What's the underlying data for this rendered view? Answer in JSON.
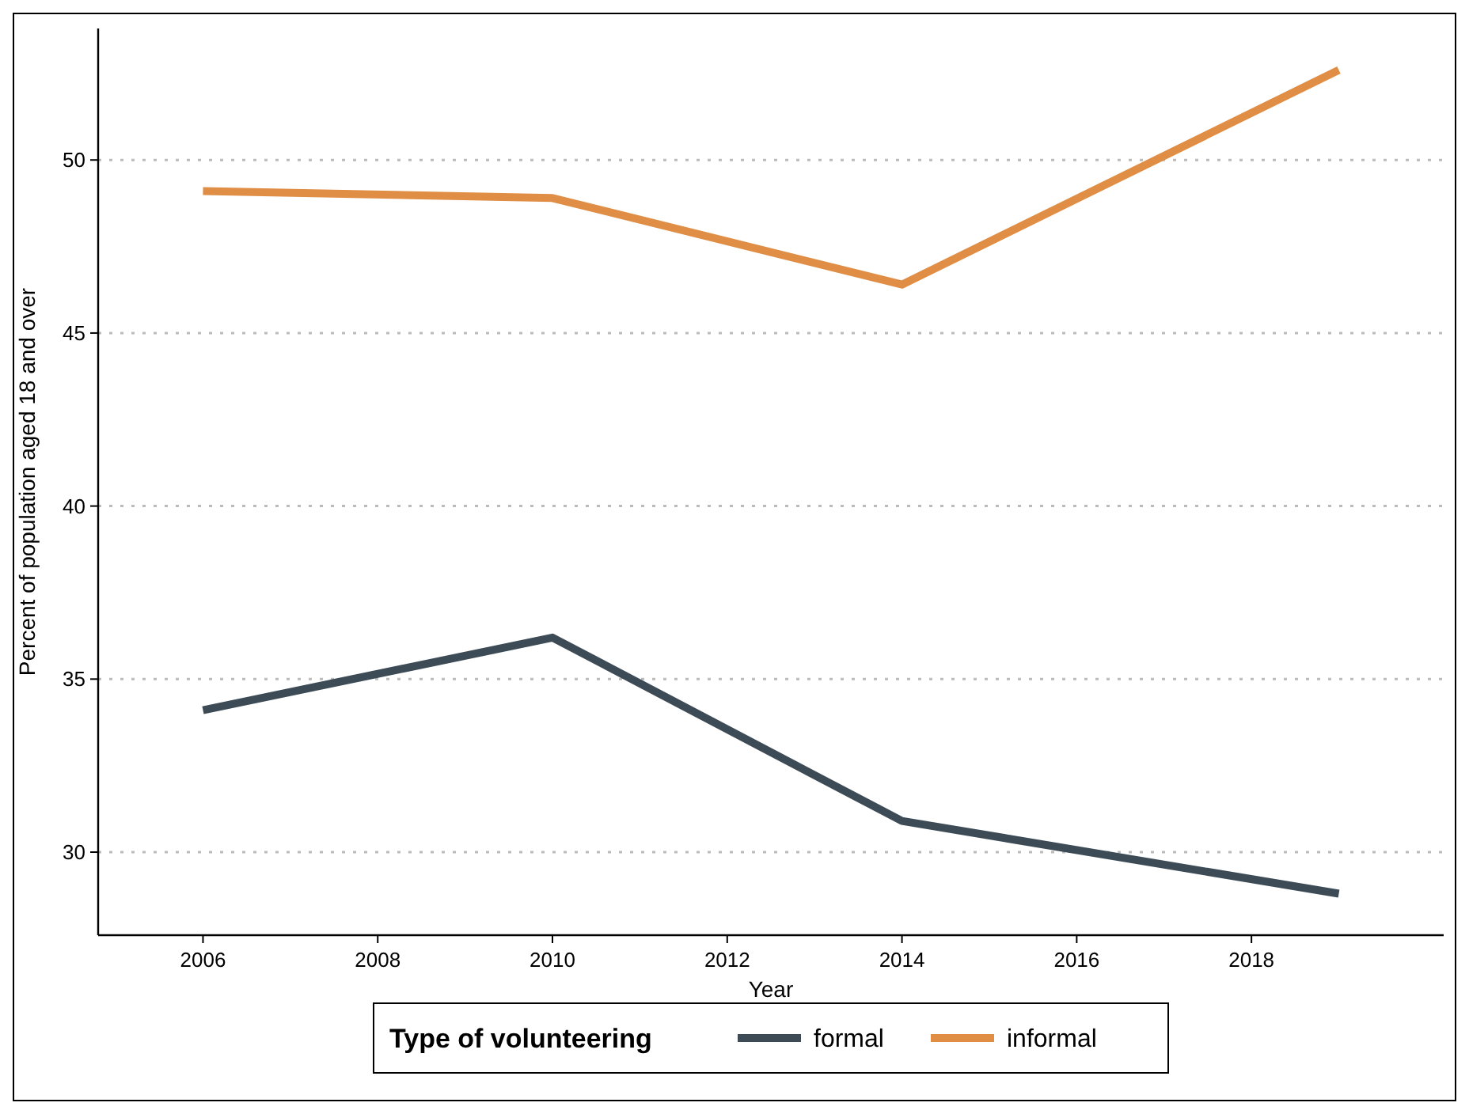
{
  "chart_data": {
    "type": "line",
    "xlabel": "Year",
    "ylabel": "Percent of population aged 18 and over",
    "legend_title": "Type of volunteering",
    "x": [
      2006,
      2010,
      2014,
      2019
    ],
    "series": [
      {
        "name": "formal",
        "color": "#3d4b56",
        "values": [
          34.1,
          36.2,
          30.9,
          28.8
        ]
      },
      {
        "name": "informal",
        "color": "#e08e45",
        "values": [
          49.1,
          48.9,
          46.4,
          52.6
        ]
      }
    ],
    "xlim": [
      2004.8,
      2020.2
    ],
    "xticks": [
      2006,
      2008,
      2010,
      2012,
      2014,
      2016,
      2018
    ],
    "ylim": [
      27.6,
      53.8
    ],
    "yticks": [
      30,
      35,
      40,
      45,
      50
    ],
    "grid": "y",
    "legend": "bottom",
    "marker": "none",
    "line_style": "solid"
  }
}
